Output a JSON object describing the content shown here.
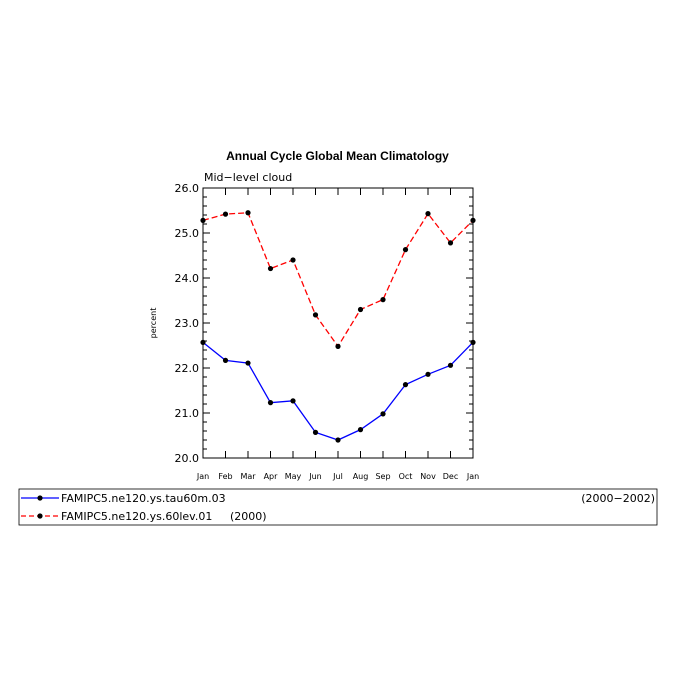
{
  "chart_data": {
    "type": "line",
    "title": "Annual Cycle Global Mean Climatology",
    "subtitle": "Mid−level cloud",
    "ylabel": "percent",
    "xlabel": "",
    "categories": [
      "Jan",
      "Feb",
      "Mar",
      "Apr",
      "May",
      "Jun",
      "Jul",
      "Aug",
      "Sep",
      "Oct",
      "Nov",
      "Dec",
      "Jan"
    ],
    "ylim": [
      20.0,
      26.0
    ],
    "yticks": [
      "20.0",
      "21.0",
      "22.0",
      "23.0",
      "24.0",
      "25.0",
      "26.0"
    ],
    "grid": false,
    "legend_position": "bottom",
    "series": [
      {
        "name": "FAMIPC5.ne120.ys.tau60m.03",
        "period": "(2000−2002)",
        "color": "#0000ff",
        "dash": "solid",
        "values": [
          22.57,
          22.17,
          22.11,
          21.23,
          21.27,
          20.57,
          20.4,
          20.63,
          20.98,
          21.63,
          21.86,
          22.06,
          22.57
        ]
      },
      {
        "name": "FAMIPC5.ne120.ys.60lev.01",
        "period": "(2000)",
        "color": "#ff0000",
        "dash": "dashed",
        "values": [
          25.28,
          25.42,
          25.45,
          24.21,
          24.4,
          23.18,
          22.48,
          23.3,
          23.52,
          24.63,
          25.43,
          24.78,
          25.28
        ]
      }
    ]
  }
}
